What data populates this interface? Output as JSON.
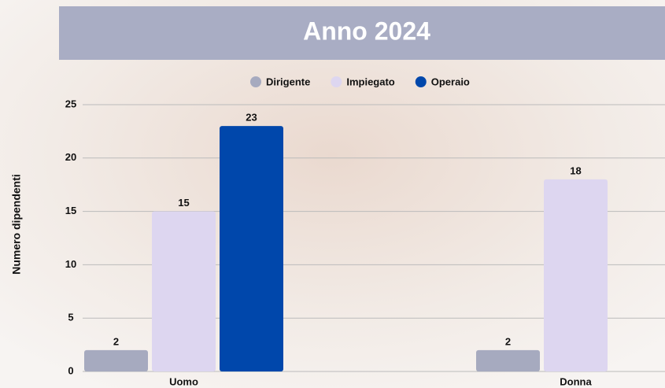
{
  "chart_data": {
    "type": "bar",
    "title": "Anno 2024",
    "y_label": "Numero dipendenti",
    "categories": [
      "Uomo",
      "Donna"
    ],
    "series": [
      {
        "name": "Dirigente",
        "color": "#a6aabf",
        "values": [
          2,
          2
        ]
      },
      {
        "name": "Impiegato",
        "color": "#ddd6f0",
        "values": [
          15,
          18
        ]
      },
      {
        "name": "Operaio",
        "color": "#0047ab",
        "values": [
          23,
          null
        ]
      }
    ],
    "ylim": [
      0,
      25
    ],
    "yticks": [
      0,
      5,
      10,
      15,
      20,
      25
    ],
    "grid": true,
    "legend": "top"
  }
}
